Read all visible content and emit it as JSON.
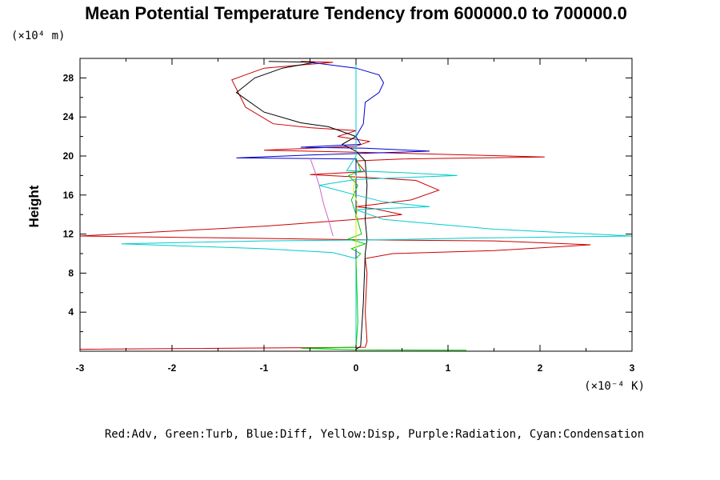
{
  "chart_data": {
    "type": "line",
    "title": "Mean Potential Temperature Tendency from 600000.0 to 700000.0",
    "ylabel": "Height",
    "y_unit": "(×10⁴ m)",
    "x_unit": "(×10⁻⁴ K)",
    "xlim": [
      -3,
      3
    ],
    "ylim": [
      0,
      30
    ],
    "x_ticks": [
      -3,
      -2,
      -1,
      0,
      1,
      2,
      3
    ],
    "y_ticks": [
      4,
      8,
      12,
      16,
      20,
      24,
      28
    ],
    "legend_text": "Red:Adv, Green:Turb, Blue:Diff, Yellow:Disp, Purple:Radiation, Cyan:Condensation",
    "legend_position": "bottom",
    "grid": false,
    "series": [
      {
        "name": "Red:Adv",
        "color": "#cc0000",
        "points": [
          [
            -3.0,
            0.2
          ],
          [
            0.1,
            0.4
          ],
          [
            0.12,
            1
          ],
          [
            0.1,
            4
          ],
          [
            0.12,
            8
          ],
          [
            0.1,
            9.5
          ],
          [
            0.4,
            10
          ],
          [
            1.5,
            10.3
          ],
          [
            2.55,
            10.9
          ],
          [
            1.5,
            11.3
          ],
          [
            0.2,
            11.4
          ],
          [
            -3.0,
            11.8
          ],
          [
            -1.0,
            12.8
          ],
          [
            0.0,
            13.5
          ],
          [
            0.5,
            14.0
          ],
          [
            0.2,
            14.6
          ],
          [
            0.0,
            14.8
          ],
          [
            0.6,
            15.5
          ],
          [
            0.9,
            16.5
          ],
          [
            0.65,
            17.5
          ],
          [
            0.1,
            17.8
          ],
          [
            -0.5,
            18.1
          ],
          [
            0.1,
            18.4
          ],
          [
            0.0,
            19.5
          ],
          [
            0.5,
            19.7
          ],
          [
            2.05,
            19.9
          ],
          [
            0.4,
            20.3
          ],
          [
            -1.0,
            20.6
          ],
          [
            0.0,
            21.0
          ],
          [
            0.15,
            21.5
          ],
          [
            -0.2,
            22.0
          ],
          [
            0.0,
            22.6
          ],
          [
            -0.5,
            22.9
          ],
          [
            -0.9,
            23.3
          ],
          [
            -1.2,
            25.0
          ],
          [
            -1.35,
            27.8
          ],
          [
            -1.0,
            29.0
          ],
          [
            -0.25,
            29.6
          ],
          [
            -0.6,
            29.7
          ]
        ]
      },
      {
        "name": "Black",
        "color": "#000000",
        "points": [
          [
            0.0,
            0.2
          ],
          [
            0.05,
            0.5
          ],
          [
            0.08,
            5
          ],
          [
            0.1,
            10
          ],
          [
            0.12,
            11.5
          ],
          [
            0.1,
            13.5
          ],
          [
            0.12,
            17
          ],
          [
            0.1,
            19.5
          ],
          [
            0.0,
            20.5
          ],
          [
            -0.15,
            21.2
          ],
          [
            0.0,
            22.0
          ],
          [
            -0.3,
            23.0
          ],
          [
            -0.6,
            23.4
          ],
          [
            -1.0,
            24.5
          ],
          [
            -1.3,
            26.5
          ],
          [
            -1.1,
            28.0
          ],
          [
            -0.8,
            29.0
          ],
          [
            -0.45,
            29.6
          ],
          [
            -0.95,
            29.7
          ]
        ]
      },
      {
        "name": "Blue:Diff",
        "color": "#0000cc",
        "points": [
          [
            0.0,
            0.3
          ],
          [
            0.0,
            10
          ],
          [
            0.0,
            17
          ],
          [
            0.0,
            19.7
          ],
          [
            -1.3,
            19.8
          ],
          [
            -0.5,
            20.1
          ],
          [
            0.8,
            20.5
          ],
          [
            0.1,
            20.8
          ],
          [
            -0.6,
            20.9
          ],
          [
            0.05,
            21.2
          ],
          [
            0.0,
            22.0
          ],
          [
            0.08,
            23.3
          ],
          [
            0.1,
            25.5
          ],
          [
            0.25,
            26.5
          ],
          [
            0.3,
            27.5
          ],
          [
            0.25,
            28.3
          ],
          [
            0.0,
            29.0
          ],
          [
            -0.5,
            29.6
          ]
        ]
      },
      {
        "name": "Cyan:Condensation",
        "color": "#00cccc",
        "points": [
          [
            0.0,
            0.3
          ],
          [
            0.0,
            9.5
          ],
          [
            -0.25,
            10.1
          ],
          [
            -1.0,
            10.5
          ],
          [
            -2.55,
            11.0
          ],
          [
            -1.0,
            11.3
          ],
          [
            0.2,
            11.4
          ],
          [
            1.3,
            11.6
          ],
          [
            3.0,
            11.8
          ],
          [
            1.5,
            12.5
          ],
          [
            0.3,
            13.5
          ],
          [
            0.0,
            14.5
          ],
          [
            0.8,
            14.8
          ],
          [
            0.3,
            15.3
          ],
          [
            0.0,
            16.0
          ],
          [
            -0.4,
            17.0
          ],
          [
            0.0,
            17.6
          ],
          [
            1.1,
            18.0
          ],
          [
            0.5,
            18.3
          ],
          [
            -0.1,
            18.5
          ],
          [
            0.0,
            20.0
          ],
          [
            0.0,
            29.7
          ]
        ]
      },
      {
        "name": "Purple:Radiation",
        "color": "#cc66cc",
        "points": [
          [
            -0.25,
            11.8
          ],
          [
            -0.3,
            13.5
          ],
          [
            -0.35,
            15.0
          ],
          [
            -0.4,
            17.0
          ],
          [
            -0.45,
            18.5
          ],
          [
            -0.5,
            19.8
          ]
        ]
      },
      {
        "name": "Green:Turb",
        "color": "#00cc00",
        "points": [
          [
            1.2,
            0.1
          ],
          [
            0.0,
            0.15
          ],
          [
            -0.6,
            0.3
          ],
          [
            0.0,
            0.4
          ],
          [
            0.02,
            3
          ],
          [
            0.0,
            9.5
          ],
          [
            0.05,
            10.0
          ],
          [
            -0.05,
            10.5
          ],
          [
            0.1,
            11.0
          ],
          [
            -0.08,
            11.5
          ],
          [
            0.06,
            12.0
          ],
          [
            0.0,
            14.0
          ],
          [
            -0.05,
            15.5
          ],
          [
            0.02,
            17.0
          ],
          [
            -0.08,
            18.0
          ],
          [
            0.05,
            18.5
          ],
          [
            0.0,
            19.8
          ]
        ]
      },
      {
        "name": "Yellow:Disp",
        "color": "#e6e600",
        "points": [
          [
            0.0,
            10.5
          ],
          [
            0.0,
            13.5
          ],
          [
            0.02,
            15.0
          ],
          [
            -0.03,
            16.5
          ],
          [
            0.0,
            18.0
          ]
        ]
      }
    ]
  }
}
